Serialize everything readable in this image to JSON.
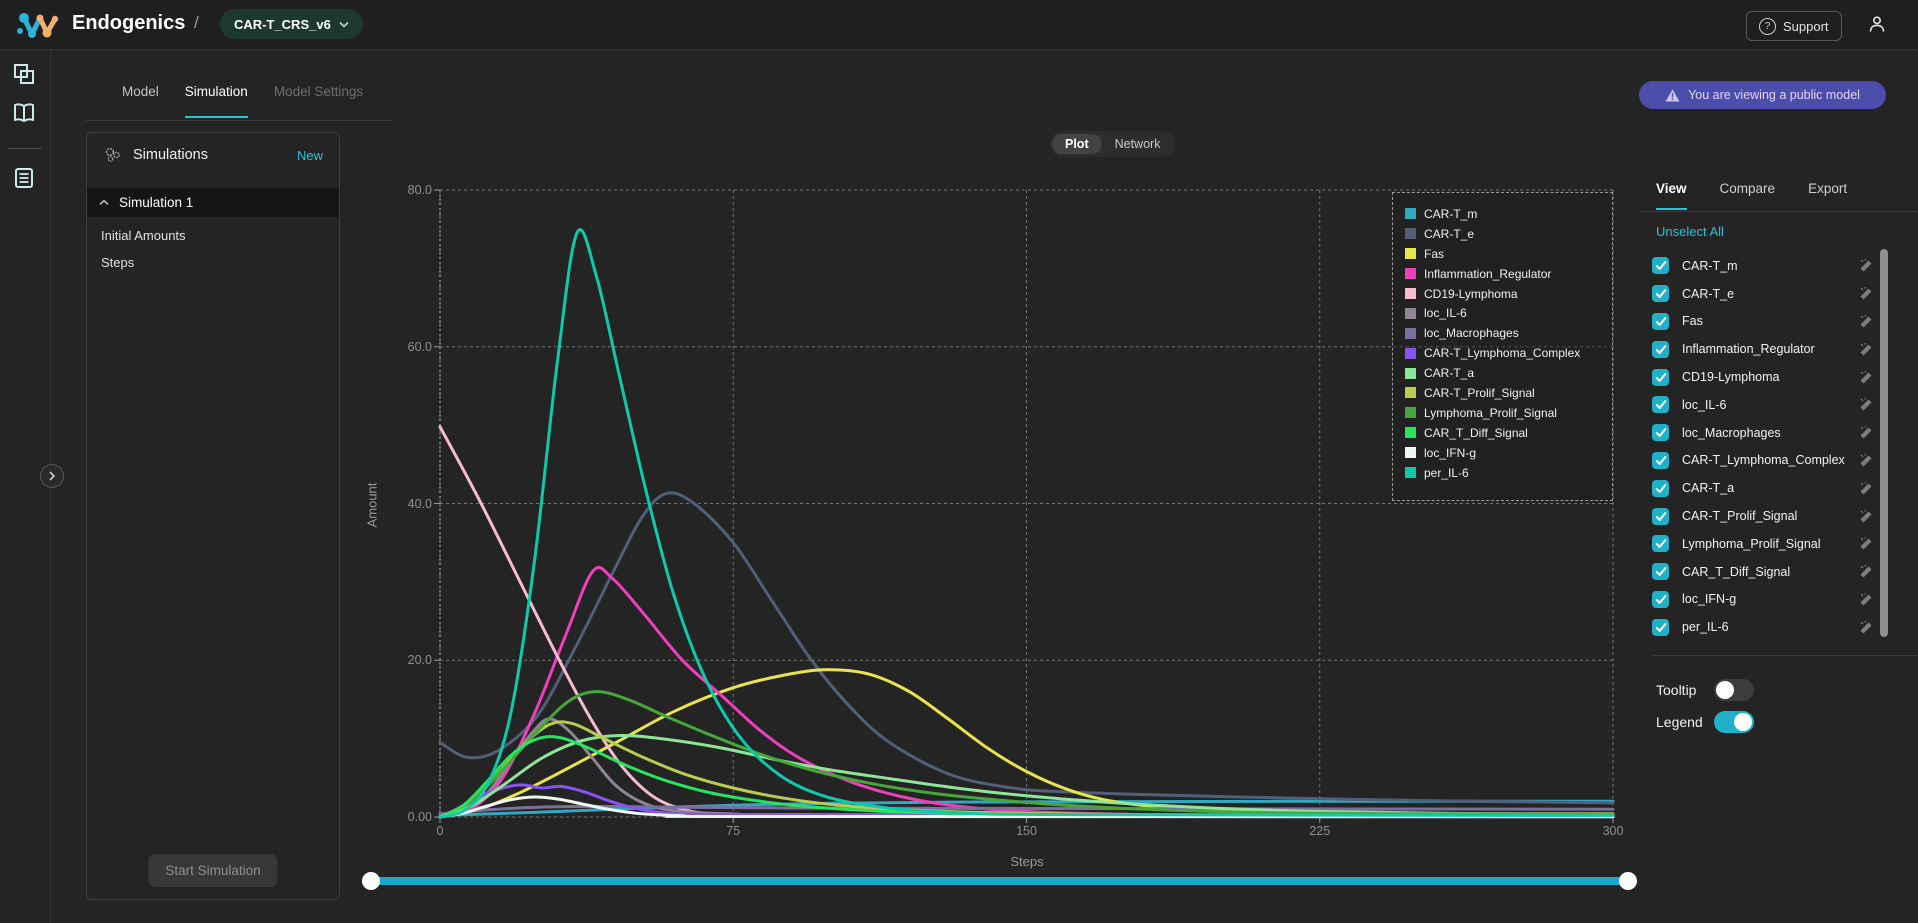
{
  "header": {
    "brand": "Endogenics",
    "separator": "/",
    "model_selector": "CAR-T_CRS_v6",
    "support_label": "Support",
    "banner": "You are viewing a public model"
  },
  "nav_tabs": {
    "items": [
      "Model",
      "Simulation",
      "Model Settings"
    ],
    "active": "Simulation"
  },
  "sidebar": {
    "title": "Simulations",
    "new_label": "New",
    "selected_item": "Simulation 1",
    "sub_items": [
      "Initial Amounts",
      "Steps"
    ],
    "start_button": "Start Simulation"
  },
  "view_toggle": {
    "options": [
      "Plot",
      "Network"
    ],
    "active": "Plot"
  },
  "right_panel": {
    "tabs": [
      "View",
      "Compare",
      "Export"
    ],
    "active_tab": "View",
    "unselect_all": "Unselect All",
    "species": [
      "CAR-T_m",
      "CAR-T_e",
      "Fas",
      "Inflammation_Regulator",
      "CD19-Lymphoma",
      "loc_IL-6",
      "loc_Macrophages",
      "CAR-T_Lymphoma_Complex",
      "CAR-T_a",
      "CAR-T_Prolif_Signal",
      "Lymphoma_Prolif_Signal",
      "CAR_T_Diff_Signal",
      "loc_IFN-g",
      "per_IL-6"
    ],
    "all_checked": true,
    "tooltip_label": "Tooltip",
    "tooltip_on": false,
    "legend_label": "Legend",
    "legend_on": true
  },
  "ui_colors": {
    "accent_cyan": "#2cc1d7",
    "checkbox_cyan": "#21b0c9",
    "banner_purple": "#4d4dac",
    "model_pill_green": "#1d3830",
    "slider_cyan": "#18a9c9"
  },
  "chart_data": {
    "type": "line",
    "title": "",
    "xlabel": "Steps",
    "ylabel": "Amount",
    "xlim": [
      0,
      300
    ],
    "ylim": [
      0,
      80
    ],
    "x_ticks": [
      0,
      75,
      150,
      225,
      300
    ],
    "y_ticks": [
      0,
      20,
      40,
      60,
      80
    ],
    "y_tick_labels": [
      "0.00",
      "20.0",
      "40.0",
      "60.0",
      "80.0"
    ],
    "x_tick_labels": [
      "0",
      "75",
      "150",
      "225",
      "300"
    ],
    "grid": "dashed",
    "legend_position": "top-right",
    "series": [
      {
        "name": "CAR-T_m",
        "color": "#2fa9c0",
        "points": [
          [
            0,
            0.2
          ],
          [
            25,
            0.6
          ],
          [
            50,
            1.1
          ],
          [
            75,
            1.5
          ],
          [
            100,
            1.75
          ],
          [
            130,
            1.9
          ],
          [
            170,
            1.95
          ],
          [
            220,
            2.0
          ],
          [
            300,
            2.0
          ]
        ]
      },
      {
        "name": "CAR-T_e",
        "color": "#525f78",
        "points": [
          [
            0,
            9.5
          ],
          [
            7,
            7.6
          ],
          [
            15,
            8.5
          ],
          [
            25,
            13
          ],
          [
            35,
            22
          ],
          [
            45,
            32
          ],
          [
            52,
            38.5
          ],
          [
            58,
            41.3
          ],
          [
            65,
            40
          ],
          [
            75,
            35
          ],
          [
            85,
            27.5
          ],
          [
            95,
            20
          ],
          [
            105,
            14
          ],
          [
            115,
            9.5
          ],
          [
            130,
            5.5
          ],
          [
            145,
            3.8
          ],
          [
            160,
            3.2
          ],
          [
            200,
            2.6
          ],
          [
            250,
            2.1
          ],
          [
            300,
            1.8
          ]
        ]
      },
      {
        "name": "Fas",
        "color": "#e8e44e",
        "points": [
          [
            0,
            0
          ],
          [
            10,
            1
          ],
          [
            20,
            3
          ],
          [
            30,
            5.5
          ],
          [
            45,
            9.5
          ],
          [
            60,
            13.5
          ],
          [
            75,
            16.5
          ],
          [
            90,
            18.3
          ],
          [
            100,
            18.8
          ],
          [
            110,
            18.2
          ],
          [
            120,
            16
          ],
          [
            130,
            12.5
          ],
          [
            140,
            8.8
          ],
          [
            150,
            5.8
          ],
          [
            160,
            3.6
          ],
          [
            170,
            2.2
          ],
          [
            185,
            1.2
          ],
          [
            205,
            0.7
          ],
          [
            250,
            0.45
          ],
          [
            300,
            0.4
          ]
        ]
      },
      {
        "name": "Inflammation_Regulator",
        "color": "#ee3fbd",
        "points": [
          [
            0,
            0
          ],
          [
            8,
            1
          ],
          [
            16,
            5
          ],
          [
            24,
            13
          ],
          [
            32,
            23
          ],
          [
            39,
            31.3
          ],
          [
            44,
            30.5
          ],
          [
            52,
            26
          ],
          [
            62,
            20
          ],
          [
            72,
            15.5
          ],
          [
            82,
            11
          ],
          [
            92,
            7.5
          ],
          [
            105,
            4.5
          ],
          [
            118,
            2.6
          ],
          [
            132,
            1.4
          ],
          [
            150,
            0.7
          ],
          [
            180,
            0.3
          ],
          [
            220,
            0.15
          ],
          [
            300,
            0.1
          ]
        ]
      },
      {
        "name": "CD19-Lymphoma",
        "color": "#f4bcd4",
        "points": [
          [
            0,
            49.8
          ],
          [
            10,
            40.5
          ],
          [
            20,
            30.5
          ],
          [
            30,
            20.5
          ],
          [
            38,
            13
          ],
          [
            46,
            6.8
          ],
          [
            54,
            2.8
          ],
          [
            62,
            1
          ],
          [
            72,
            0.3
          ],
          [
            90,
            0.1
          ],
          [
            300,
            0.05
          ]
        ]
      },
      {
        "name": "loc_IL-6",
        "color": "#8f8595",
        "points": [
          [
            0,
            0
          ],
          [
            6,
            0.8
          ],
          [
            12,
            3
          ],
          [
            18,
            7
          ],
          [
            24,
            11
          ],
          [
            28,
            12.5
          ],
          [
            33,
            11
          ],
          [
            39,
            7.5
          ],
          [
            45,
            4
          ],
          [
            52,
            1.8
          ],
          [
            60,
            0.8
          ],
          [
            75,
            0.4
          ],
          [
            100,
            0.3
          ],
          [
            300,
            0.25
          ]
        ]
      },
      {
        "name": "loc_Macrophages",
        "color": "#7b6fa0",
        "points": [
          [
            0,
            0.4
          ],
          [
            12,
            0.9
          ],
          [
            25,
            1.25
          ],
          [
            40,
            1.35
          ],
          [
            60,
            1.25
          ],
          [
            90,
            1.15
          ],
          [
            130,
            1.1
          ],
          [
            200,
            1.05
          ],
          [
            300,
            1.0
          ]
        ]
      },
      {
        "name": "CAR-T_Lymphoma_Complex",
        "color": "#8a52f0",
        "points": [
          [
            0,
            0
          ],
          [
            5,
            1.2
          ],
          [
            10,
            2.6
          ],
          [
            16,
            3.7
          ],
          [
            21,
            4.1
          ],
          [
            26,
            3.7
          ],
          [
            31,
            3.9
          ],
          [
            37,
            3.2
          ],
          [
            43,
            2.1
          ],
          [
            50,
            1.1
          ],
          [
            58,
            0.5
          ],
          [
            70,
            0.3
          ],
          [
            100,
            0.25
          ],
          [
            300,
            0.2
          ]
        ]
      },
      {
        "name": "CAR-T_a",
        "color": "#8fe597",
        "points": [
          [
            0,
            0
          ],
          [
            8,
            1.4
          ],
          [
            16,
            4
          ],
          [
            26,
            7.5
          ],
          [
            36,
            9.7
          ],
          [
            46,
            10.4
          ],
          [
            58,
            9.9
          ],
          [
            72,
            8.8
          ],
          [
            86,
            7.3
          ],
          [
            100,
            6
          ],
          [
            115,
            4.9
          ],
          [
            132,
            3.7
          ],
          [
            150,
            2.7
          ],
          [
            170,
            1.9
          ],
          [
            195,
            1.2
          ],
          [
            225,
            0.7
          ],
          [
            260,
            0.45
          ],
          [
            300,
            0.3
          ]
        ]
      },
      {
        "name": "CAR-T_Prolif_Signal",
        "color": "#b9cc4d",
        "points": [
          [
            0,
            0
          ],
          [
            7,
            1.6
          ],
          [
            14,
            5
          ],
          [
            21,
            9
          ],
          [
            28,
            11.8
          ],
          [
            34,
            11.9
          ],
          [
            42,
            10
          ],
          [
            52,
            7.6
          ],
          [
            63,
            5.4
          ],
          [
            75,
            3.7
          ],
          [
            88,
            2.4
          ],
          [
            102,
            1.5
          ],
          [
            120,
            0.9
          ],
          [
            145,
            0.5
          ],
          [
            180,
            0.3
          ],
          [
            240,
            0.2
          ],
          [
            300,
            0.18
          ]
        ]
      },
      {
        "name": "Lymphoma_Prolif_Signal",
        "color": "#46a63c",
        "points": [
          [
            0,
            0
          ],
          [
            8,
            2
          ],
          [
            16,
            6
          ],
          [
            25,
            11
          ],
          [
            33,
            14.8
          ],
          [
            40,
            16
          ],
          [
            48,
            15
          ],
          [
            58,
            12.8
          ],
          [
            70,
            10.3
          ],
          [
            82,
            8
          ],
          [
            95,
            6
          ],
          [
            110,
            4.3
          ],
          [
            125,
            3.1
          ],
          [
            142,
            2.2
          ],
          [
            160,
            1.5
          ],
          [
            185,
            0.9
          ],
          [
            220,
            0.5
          ],
          [
            300,
            0.3
          ]
        ]
      },
      {
        "name": "CAR_T_Diff_Signal",
        "color": "#27e35f",
        "points": [
          [
            0,
            0
          ],
          [
            6,
            1.5
          ],
          [
            12,
            4.5
          ],
          [
            18,
            7.8
          ],
          [
            24,
            9.8
          ],
          [
            30,
            10.2
          ],
          [
            38,
            8.8
          ],
          [
            48,
            6.5
          ],
          [
            58,
            4.6
          ],
          [
            70,
            3
          ],
          [
            85,
            1.8
          ],
          [
            100,
            1.1
          ],
          [
            120,
            0.6
          ],
          [
            150,
            0.3
          ],
          [
            200,
            0.18
          ],
          [
            300,
            0.15
          ]
        ]
      },
      {
        "name": "loc_IFN-g",
        "color": "#eef8f1",
        "points": [
          [
            0,
            0
          ],
          [
            6,
            0.5
          ],
          [
            12,
            1.4
          ],
          [
            18,
            2.2
          ],
          [
            24,
            2.55
          ],
          [
            30,
            2.3
          ],
          [
            37,
            1.6
          ],
          [
            44,
            0.9
          ],
          [
            52,
            0.4
          ],
          [
            62,
            0.15
          ],
          [
            80,
            0.06
          ],
          [
            300,
            0.03
          ]
        ]
      },
      {
        "name": "per_IL-6",
        "color": "#0fc9ab",
        "points": [
          [
            0,
            0
          ],
          [
            6,
            0.8
          ],
          [
            12,
            4
          ],
          [
            18,
            13
          ],
          [
            24,
            32
          ],
          [
            30,
            58
          ],
          [
            35,
            74.5
          ],
          [
            40,
            69
          ],
          [
            46,
            56
          ],
          [
            53,
            41
          ],
          [
            60,
            28
          ],
          [
            68,
            17.5
          ],
          [
            77,
            10
          ],
          [
            87,
            5.3
          ],
          [
            98,
            2.7
          ],
          [
            112,
            1.3
          ],
          [
            130,
            0.6
          ],
          [
            160,
            0.3
          ],
          [
            300,
            0.2
          ]
        ]
      }
    ]
  }
}
